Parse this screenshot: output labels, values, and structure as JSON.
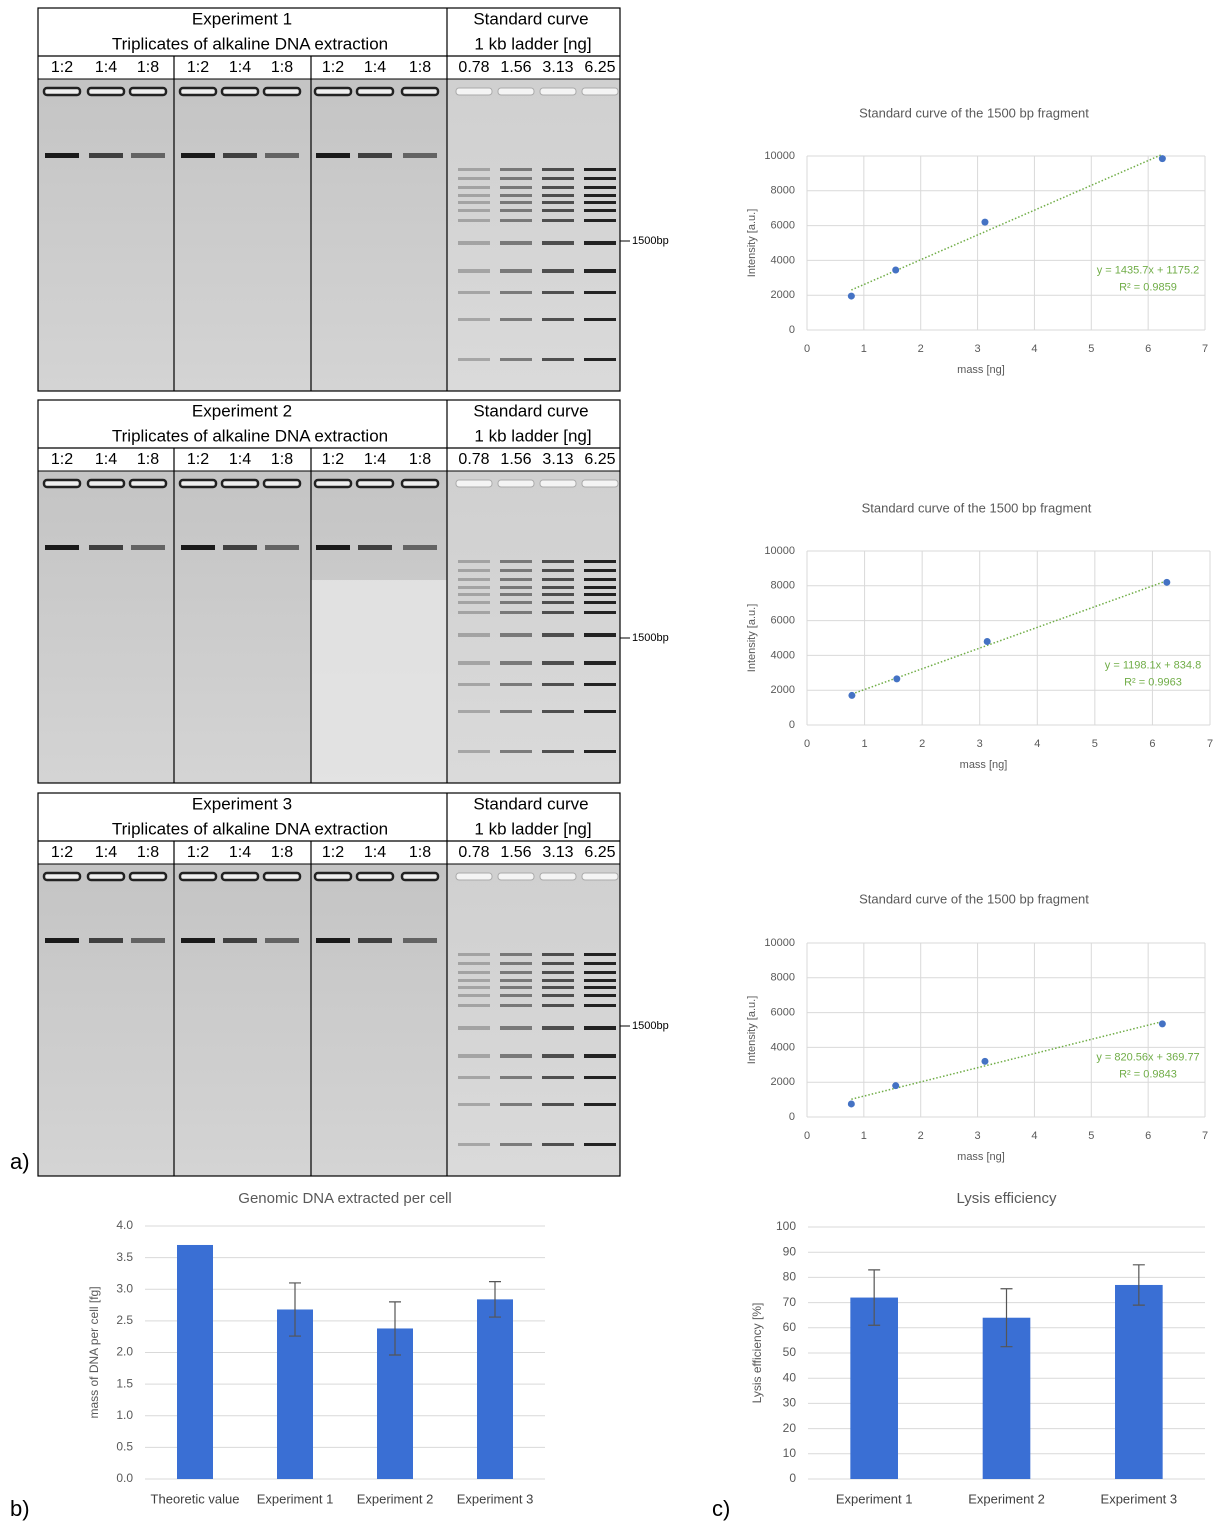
{
  "panel_labels": [
    "a)",
    "b)",
    "c)"
  ],
  "gels": [
    {
      "title": "Experiment 1",
      "subtitle": "Triplicates of alkaline DNA extraction",
      "ladder_title": "Standard curve",
      "ladder_subtitle": "1 kb ladder [ng]",
      "sample_lanes": [
        "1:2",
        "1:4",
        "1:8",
        "1:2",
        "1:4",
        "1:8",
        "1:2",
        "1:4",
        "1:8"
      ],
      "ladder_lanes": [
        "0.78",
        "1.56",
        "3.13",
        "6.25"
      ],
      "marker": "1500bp"
    },
    {
      "title": "Experiment 2",
      "subtitle": "Triplicates of alkaline DNA extraction",
      "ladder_title": "Standard curve",
      "ladder_subtitle": "1 kb ladder [ng]",
      "sample_lanes": [
        "1:2",
        "1:4",
        "1:8",
        "1:2",
        "1:4",
        "1:8",
        "1:2",
        "1:4",
        "1:8"
      ],
      "ladder_lanes": [
        "0.78",
        "1.56",
        "3.13",
        "6.25"
      ],
      "marker": "1500bp"
    },
    {
      "title": "Experiment 3",
      "subtitle": "Triplicates of alkaline DNA extraction",
      "ladder_title": "Standard curve",
      "ladder_subtitle": "1 kb ladder [ng]",
      "sample_lanes": [
        "1:2",
        "1:4",
        "1:8",
        "1:2",
        "1:4",
        "1:8",
        "1:2",
        "1:4",
        "1:8"
      ],
      "ladder_lanes": [
        "0.78",
        "1.56",
        "3.13",
        "6.25"
      ],
      "marker": "1500bp"
    }
  ],
  "chart_data": [
    {
      "type": "scatter",
      "title": "Standard curve of the 1500 bp fragment",
      "x_label": "mass [ng]",
      "y_label": "Intensity [a.u.]",
      "x": [
        0.78,
        1.56,
        3.13,
        6.25
      ],
      "values": [
        1950,
        3450,
        6200,
        9850
      ],
      "color": "#4472c4",
      "trendline_color": "#70ad47",
      "annotations": [
        "y = 1435.7x + 1175.2",
        "R² = 0.9859"
      ],
      "xlim": [
        0,
        7
      ],
      "xticks": [
        0,
        1,
        2,
        3,
        4,
        5,
        6,
        7
      ],
      "ylim": [
        0,
        10000
      ],
      "yticks": [
        0,
        2000,
        4000,
        6000,
        8000,
        10000
      ],
      "grid": true
    },
    {
      "type": "scatter",
      "title": "Standard curve of the 1500 bp fragment",
      "x_label": "mass [ng]",
      "y_label": "Intensity [a.u.]",
      "x": [
        0.78,
        1.56,
        3.13,
        6.25
      ],
      "values": [
        1700,
        2650,
        4800,
        8200
      ],
      "color": "#4472c4",
      "trendline_color": "#70ad47",
      "annotations": [
        "y = 1198.1x + 834.8",
        "R² = 0.9963"
      ],
      "xlim": [
        0,
        7
      ],
      "xticks": [
        0,
        1,
        2,
        3,
        4,
        5,
        6,
        7
      ],
      "ylim": [
        0,
        10000
      ],
      "yticks": [
        0,
        2000,
        4000,
        6000,
        8000,
        10000
      ],
      "grid": true
    },
    {
      "type": "scatter",
      "title": "Standard curve of the 1500 bp fragment",
      "x_label": "mass [ng]",
      "y_label": "Intensity [a.u.]",
      "x": [
        0.78,
        1.56,
        3.13,
        6.25
      ],
      "values": [
        750,
        1800,
        3200,
        5350
      ],
      "color": "#4472c4",
      "trendline_color": "#70ad47",
      "annotations": [
        "y = 820.56x + 369.77",
        "R² = 0.9843"
      ],
      "xlim": [
        0,
        7
      ],
      "xticks": [
        0,
        1,
        2,
        3,
        4,
        5,
        6,
        7
      ],
      "ylim": [
        0,
        10000
      ],
      "yticks": [
        0,
        2000,
        4000,
        6000,
        8000,
        10000
      ],
      "grid": true
    },
    {
      "type": "bar",
      "title": "Genomic DNA extracted per cell",
      "y_label": "mass of DNA per cell [fg]",
      "categories": [
        "Theoretic value",
        "Experiment 1",
        "Experiment 2",
        "Experiment 3"
      ],
      "values": [
        3.7,
        2.68,
        2.38,
        2.84
      ],
      "errors": [
        null,
        0.42,
        0.42,
        0.28
      ],
      "color": "#3a6fd4",
      "ylim": [
        0,
        4
      ],
      "yticks": [
        {
          "value": 0,
          "label": "0.0"
        },
        0.5,
        {
          "value": 1,
          "label": "1.0"
        },
        1.5,
        {
          "value": 2,
          "label": "2.0"
        },
        2.5,
        {
          "value": 3,
          "label": "3.0"
        },
        3.5,
        {
          "value": 4,
          "label": "4.0"
        }
      ],
      "grid": true
    },
    {
      "type": "bar",
      "title": "Lysis efficiency",
      "y_label": "Lysis efficiency [%]",
      "categories": [
        "Experiment 1",
        "Experiment 2",
        "Experiment 3"
      ],
      "values": [
        72,
        64,
        77
      ],
      "errors": [
        11,
        11.5,
        8
      ],
      "color": "#3a6fd4",
      "ylim": [
        0,
        100
      ],
      "yticks": [
        0,
        10,
        20,
        30,
        40,
        50,
        60,
        70,
        80,
        90,
        100
      ],
      "grid": true
    }
  ]
}
